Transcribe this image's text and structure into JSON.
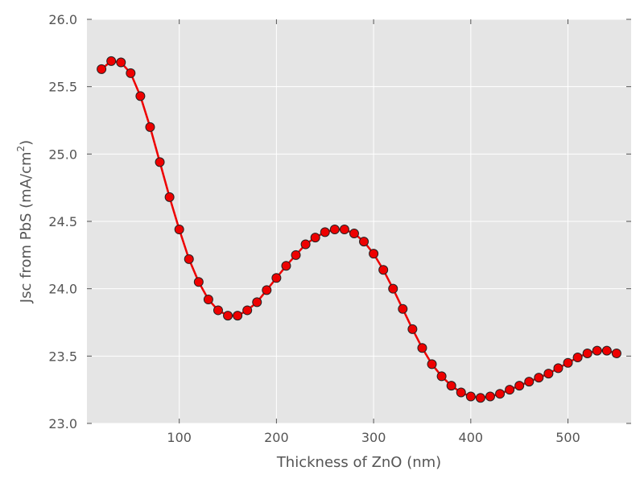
{
  "chart_data": {
    "type": "line",
    "title": "",
    "xlabel": "Thickness of ZnO (nm)",
    "ylabel_main": "Jsc from PbS (mA/cm",
    "ylabel_sup": "2",
    "ylabel_close": ")",
    "xlim": [
      5,
      565
    ],
    "ylim": [
      23.0,
      26.0
    ],
    "xticks": [
      100,
      200,
      300,
      400,
      500
    ],
    "xtick_labels": [
      "100",
      "200",
      "300",
      "400",
      "500"
    ],
    "yticks": [
      23.0,
      23.5,
      24.0,
      24.5,
      25.0,
      25.5,
      26.0
    ],
    "ytick_labels": [
      "23.0",
      "23.5",
      "24.0",
      "24.5",
      "25.0",
      "25.5",
      "26.0"
    ],
    "grid": true,
    "background": "#e5e5e5",
    "line_color": "#ee0000",
    "marker_color": "#ee0000",
    "series": [
      {
        "x": [
          20,
          30,
          40,
          50,
          60,
          70,
          80,
          90,
          100,
          110,
          120,
          130,
          140,
          150,
          160,
          170,
          180,
          190,
          200,
          210,
          220,
          230,
          240,
          250,
          260,
          270,
          280,
          290,
          300,
          310,
          320,
          330,
          340,
          350,
          360,
          370,
          380,
          390,
          400,
          410,
          420,
          430,
          440,
          450,
          460,
          470,
          480,
          490,
          500,
          510,
          520,
          530,
          540,
          550
        ],
        "y": [
          25.63,
          25.69,
          25.68,
          25.6,
          25.43,
          25.2,
          24.94,
          24.68,
          24.44,
          24.22,
          24.05,
          23.92,
          23.84,
          23.8,
          23.8,
          23.84,
          23.9,
          23.99,
          24.08,
          24.17,
          24.25,
          24.33,
          24.38,
          24.42,
          24.44,
          24.44,
          24.41,
          24.35,
          24.26,
          24.14,
          24.0,
          23.85,
          23.7,
          23.56,
          23.44,
          23.35,
          23.28,
          23.23,
          23.2,
          23.19,
          23.2,
          23.22,
          23.25,
          23.28,
          23.31,
          23.34,
          23.37,
          23.41,
          23.45,
          23.49,
          23.52,
          23.54,
          23.54,
          23.52
        ]
      }
    ]
  }
}
